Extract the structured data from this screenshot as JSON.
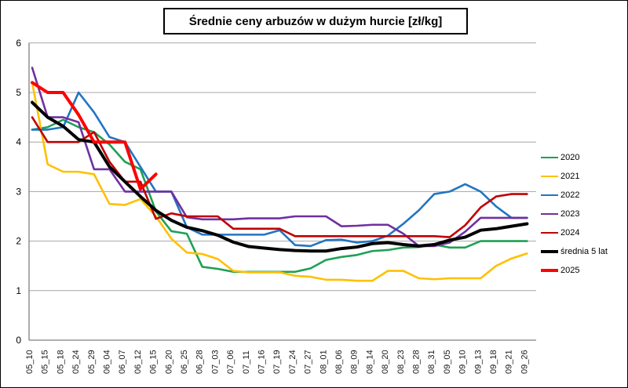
{
  "chart_data": {
    "type": "line",
    "title": "Średnie ceny arbuzów w dużym hurcie [zł/kg]",
    "xlabel": "",
    "ylabel": "",
    "ylim": [
      0,
      6
    ],
    "yticks": [
      0,
      1,
      2,
      3,
      4,
      5,
      6
    ],
    "grid": true,
    "legend_position": "right",
    "categories": [
      "05_10",
      "05_15",
      "05_18",
      "05_24",
      "05_29",
      "06_04",
      "06_07",
      "06_12",
      "06_15",
      "06_20",
      "06_25",
      "06_28",
      "07_03",
      "07_06",
      "07_11",
      "07_16",
      "07_19",
      "07_24",
      "07_27",
      "08_01",
      "08_06",
      "08_09",
      "08_14",
      "08_20",
      "08_23",
      "08_28",
      "08_31",
      "09_05",
      "09_10",
      "09_13",
      "09_18",
      "09_21",
      "09_26"
    ],
    "series": [
      {
        "name": "2020",
        "color": "#1FA055",
        "width": 2.6,
        "values": [
          4.25,
          4.3,
          4.45,
          4.3,
          4.2,
          3.95,
          3.6,
          3.45,
          2.6,
          2.2,
          2.15,
          1.48,
          1.44,
          1.38,
          1.38,
          1.38,
          1.38,
          1.38,
          1.45,
          1.62,
          1.68,
          1.72,
          1.8,
          1.82,
          1.87,
          1.88,
          1.93,
          1.87,
          1.87,
          2.0,
          2.0,
          2.0,
          2.0
        ]
      },
      {
        "name": "2021",
        "color": "#FFC000",
        "width": 2.6,
        "values": [
          5.2,
          3.55,
          3.4,
          3.4,
          3.35,
          2.75,
          2.73,
          2.85,
          2.5,
          2.05,
          1.77,
          1.74,
          1.64,
          1.4,
          1.37,
          1.37,
          1.37,
          1.3,
          1.28,
          1.22,
          1.22,
          1.2,
          1.2,
          1.4,
          1.4,
          1.25,
          1.23,
          1.25,
          1.25,
          1.25,
          1.5,
          1.65,
          1.75
        ]
      },
      {
        "name": "2022",
        "color": "#2175C2",
        "width": 2.6,
        "values": [
          4.25,
          4.25,
          4.3,
          5.0,
          4.6,
          4.1,
          4.0,
          3.5,
          3.0,
          3.0,
          2.28,
          2.13,
          2.13,
          2.13,
          2.13,
          2.13,
          2.22,
          1.92,
          1.9,
          2.02,
          2.03,
          1.97,
          2.0,
          2.11,
          2.35,
          2.62,
          2.95,
          3.0,
          3.15,
          3.0,
          2.7,
          2.47,
          2.47
        ]
      },
      {
        "name": "2023",
        "color": "#7030A0",
        "width": 2.6,
        "values": [
          5.5,
          4.5,
          4.5,
          4.4,
          3.45,
          3.45,
          3.0,
          3.0,
          3.0,
          3.0,
          2.48,
          2.44,
          2.44,
          2.44,
          2.46,
          2.46,
          2.46,
          2.5,
          2.5,
          2.5,
          2.3,
          2.31,
          2.33,
          2.33,
          2.15,
          1.9,
          1.9,
          1.97,
          2.19,
          2.47,
          2.47,
          2.47,
          2.47
        ]
      },
      {
        "name": "2024",
        "color": "#C00000",
        "width": 2.6,
        "values": [
          4.5,
          4.0,
          4.0,
          4.0,
          4.2,
          3.6,
          3.2,
          3.2,
          2.45,
          2.56,
          2.5,
          2.5,
          2.5,
          2.25,
          2.25,
          2.25,
          2.25,
          2.1,
          2.1,
          2.1,
          2.1,
          2.1,
          2.1,
          2.1,
          2.1,
          2.1,
          2.1,
          2.08,
          2.32,
          2.68,
          2.9,
          2.95,
          2.95
        ]
      },
      {
        "name": "średnia 5 lat",
        "color": "#000000",
        "width": 4,
        "values": [
          4.8,
          4.5,
          4.32,
          4.05,
          4.0,
          3.5,
          3.2,
          2.9,
          2.62,
          2.42,
          2.28,
          2.21,
          2.12,
          1.98,
          1.89,
          1.86,
          1.83,
          1.81,
          1.8,
          1.8,
          1.85,
          1.88,
          1.95,
          1.97,
          1.93,
          1.9,
          1.93,
          2.02,
          2.08,
          2.22,
          2.25,
          2.3,
          2.35
        ]
      },
      {
        "name": "2025",
        "color": "#FF0000",
        "width": 4,
        "values": [
          5.2,
          5.0,
          5.0,
          4.55,
          4.0,
          4.0,
          4.0,
          3.05,
          3.35,
          null,
          null,
          null,
          null,
          null,
          null,
          null,
          null,
          null,
          null,
          null,
          null,
          null,
          null,
          null,
          null,
          null,
          null,
          null,
          null,
          null,
          null,
          null,
          null
        ]
      }
    ]
  }
}
